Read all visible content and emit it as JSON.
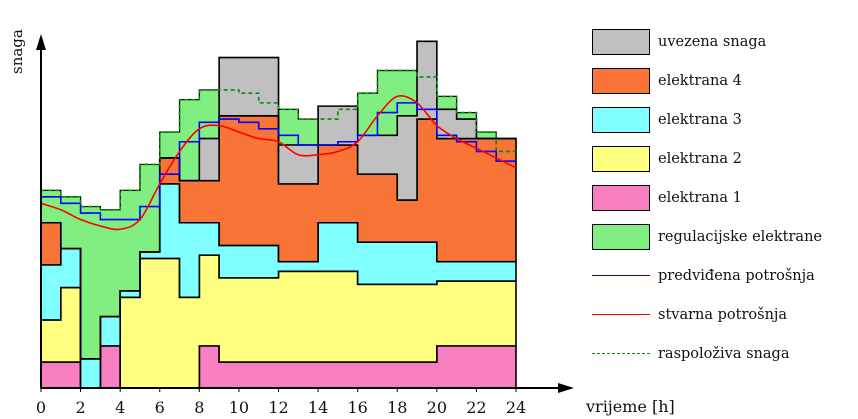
{
  "chart_data": {
    "type": "area",
    "xlabel": "vrijeme [h]",
    "ylabel": "snaga",
    "x_ticks": [
      0,
      2,
      4,
      6,
      8,
      10,
      12,
      14,
      16,
      18,
      20,
      22,
      24
    ],
    "xlim": [
      0,
      24
    ],
    "ylim": [
      0,
      10
    ],
    "stacked_layers": [
      {
        "name": "elektrana 1",
        "color": "#f77fc1",
        "steps": [
          [
            0,
            1,
            0.8
          ],
          [
            1,
            2,
            0.8
          ],
          [
            3,
            4,
            1.3
          ],
          [
            8,
            9,
            1.3
          ],
          [
            9,
            20,
            0.8
          ],
          [
            20,
            21,
            1.3
          ],
          [
            21,
            24,
            1.3
          ]
        ]
      },
      {
        "name": "elektrana 2",
        "color": "#ffff80",
        "steps": [
          [
            0,
            1,
            1.3
          ],
          [
            1,
            2,
            2.3
          ],
          [
            4,
            4.9,
            2.8
          ],
          [
            4.9,
            7,
            4.0
          ],
          [
            7,
            9,
            2.8
          ],
          [
            9,
            12,
            2.6
          ],
          [
            12,
            16,
            2.8
          ],
          [
            16,
            20,
            2.4
          ],
          [
            20,
            24,
            2.0
          ]
        ]
      },
      {
        "name": "elektrana 3",
        "color": "#7fffff",
        "steps": [
          [
            0,
            1,
            1.7
          ],
          [
            1,
            2,
            1.2
          ],
          [
            2,
            4,
            0.9
          ],
          [
            4,
            6,
            0.2
          ],
          [
            6,
            8,
            2.3
          ],
          [
            8,
            12,
            1.0
          ],
          [
            12,
            14,
            0.3
          ],
          [
            14,
            16,
            1.5
          ],
          [
            16,
            20,
            1.3
          ],
          [
            20,
            24,
            0.6
          ]
        ]
      },
      {
        "name": "elektrana 4",
        "color": "#f87437",
        "steps": [
          [
            0,
            1,
            1.3
          ],
          [
            1,
            6,
            0.0
          ],
          [
            6,
            7,
            0.8
          ],
          [
            7,
            8,
            1.3
          ],
          [
            8,
            9,
            1.3
          ],
          [
            9,
            12,
            4.0
          ],
          [
            12,
            14,
            2.4
          ],
          [
            14,
            16,
            2.4
          ],
          [
            16,
            18,
            2.1
          ],
          [
            18,
            19,
            1.3
          ],
          [
            19,
            24,
            3.8
          ]
        ]
      },
      {
        "name": "uvezena snaga",
        "color": "#c0c0c0",
        "steps": [
          [
            0,
            8,
            0
          ],
          [
            8,
            9,
            1.3
          ],
          [
            9,
            12,
            1.8
          ],
          [
            12,
            18,
            1.2
          ],
          [
            18,
            19,
            2.6
          ],
          [
            19,
            20,
            2.4
          ],
          [
            20,
            21,
            0.9
          ],
          [
            21,
            22,
            0.6
          ],
          [
            22,
            24,
            0.0
          ]
        ]
      }
    ],
    "series": [
      {
        "name": "regulacijske elektrane",
        "type": "band",
        "color": "#80ee80"
      },
      {
        "name": "predviđena potrošnja",
        "color": "#0000ff",
        "x": [
          0,
          1,
          2,
          3,
          4,
          5,
          6,
          7,
          8,
          9,
          10,
          11,
          12,
          13,
          14,
          15,
          16,
          17,
          18,
          19,
          20,
          21,
          22,
          23,
          24
        ],
        "y": [
          5.9,
          5.7,
          5.4,
          5.2,
          5.2,
          5.6,
          6.6,
          7.6,
          8.2,
          8.3,
          8.2,
          8.0,
          7.8,
          7.5,
          7.5,
          7.6,
          7.8,
          8.5,
          8.8,
          8.6,
          7.8,
          7.6,
          7.3,
          7.0,
          6.6
        ]
      },
      {
        "name": "stvarna potrošnja",
        "color": "#ff0000",
        "x": [
          0,
          1,
          2,
          3,
          4,
          5,
          6,
          7,
          8,
          9,
          10,
          11,
          12,
          13,
          14,
          15,
          16,
          17,
          18,
          19,
          20,
          21,
          22,
          23,
          24
        ],
        "y": [
          5.7,
          5.5,
          5.2,
          5.0,
          4.9,
          5.2,
          6.3,
          7.3,
          8.0,
          8.1,
          7.9,
          7.7,
          7.6,
          7.2,
          7.2,
          7.3,
          7.6,
          8.4,
          9.0,
          8.8,
          8.1,
          7.7,
          7.4,
          7.1,
          6.8
        ]
      },
      {
        "name": "raspoloživa snaga",
        "color": "#0a8a0a",
        "style": "dashed",
        "x": [
          0,
          1,
          1,
          2,
          2,
          3,
          3,
          4,
          4,
          5,
          5,
          6,
          6,
          7,
          7,
          8,
          8,
          9,
          9,
          10,
          10,
          11,
          11,
          12,
          12,
          13,
          13,
          14,
          14,
          15,
          15,
          16,
          16,
          17,
          17,
          18,
          18,
          19,
          19,
          20,
          20,
          21,
          21,
          22,
          22,
          23,
          23,
          24
        ],
        "y": [
          6.1,
          6.1,
          5.9,
          5.9,
          5.6,
          5.6,
          5.5,
          5.5,
          6.1,
          6.1,
          6.9,
          6.9,
          7.9,
          7.9,
          8.9,
          8.9,
          9.2,
          9.2,
          9.2,
          9.2,
          9.1,
          9.1,
          8.8,
          8.8,
          8.6,
          8.6,
          8.3,
          8.3,
          8.3,
          8.3,
          8.6,
          8.6,
          9.1,
          9.1,
          9.8,
          9.8,
          9.8,
          9.8,
          9.6,
          9.6,
          9.0,
          9.0,
          8.5,
          8.5,
          7.9,
          7.9,
          7.3,
          7.3
        ]
      }
    ],
    "legend": [
      "uvezena snaga",
      "elektrana 4",
      "elektrana 3",
      "elektrana 2",
      "elektrana 1",
      "regulacijske elektrane",
      "predviđena potrošnja",
      "stvarna potrošnja",
      "raspoloživa snaga"
    ],
    "legend_position": "right",
    "grid": false
  },
  "legend_items": [
    {
      "label": "uvezena snaga",
      "kind": "box",
      "color": "#c0c0c0"
    },
    {
      "label": "elektrana 4",
      "kind": "box",
      "color": "#f87437"
    },
    {
      "label": "elektrana 3",
      "kind": "box",
      "color": "#7fffff"
    },
    {
      "label": "elektrana 2",
      "kind": "box",
      "color": "#ffff80"
    },
    {
      "label": "elektrana 1",
      "kind": "box",
      "color": "#f77fc1"
    },
    {
      "label": "regulacijske elektrane",
      "kind": "box",
      "color": "#80ee80"
    },
    {
      "label": "predviđena potrošnja",
      "kind": "line",
      "color": "#0000ff"
    },
    {
      "label": "stvarna potrošnja",
      "kind": "line",
      "color": "#ff0000"
    },
    {
      "label": "raspoloživa snaga",
      "kind": "dashed",
      "color": "#0a8a0a"
    }
  ]
}
